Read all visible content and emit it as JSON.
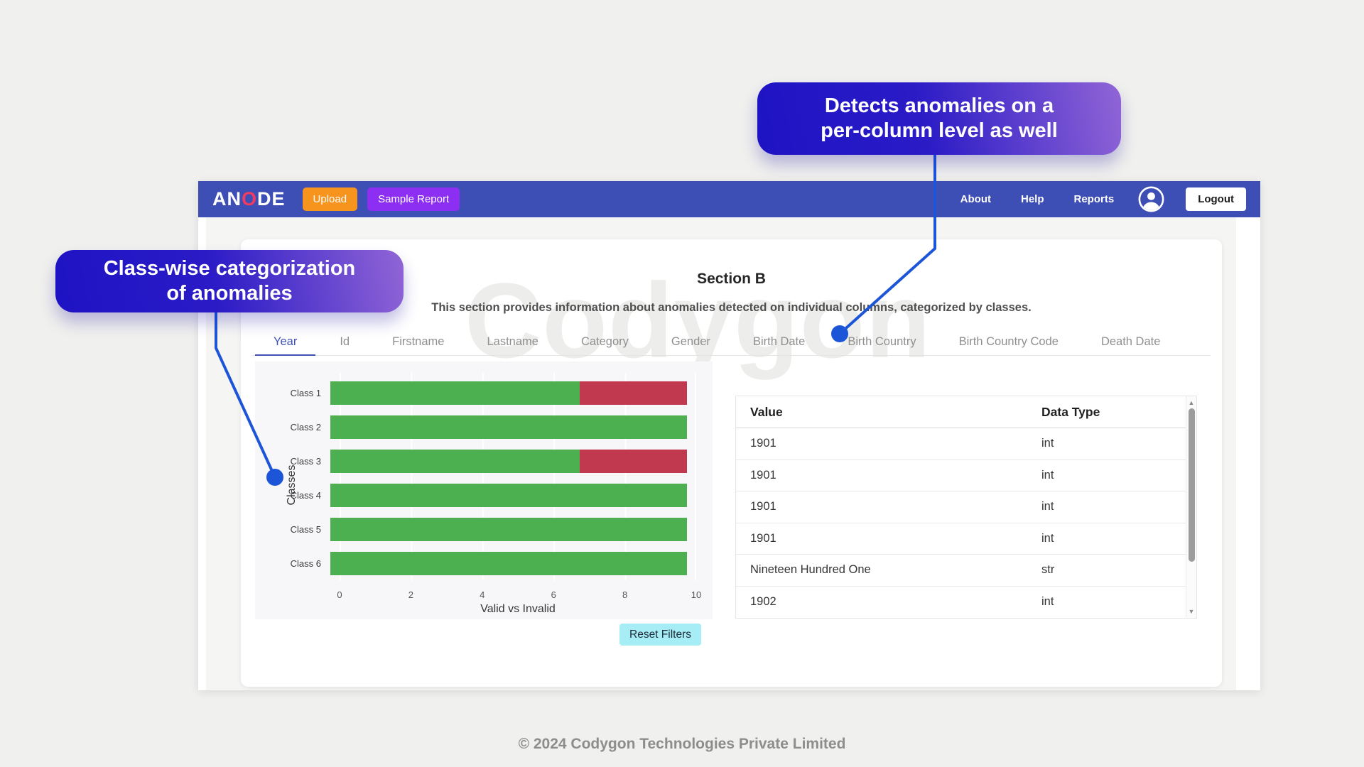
{
  "annotations": {
    "top_callout": {
      "line1": "Detects anomalies on a",
      "line2": "per-column level as well"
    },
    "left_callout": {
      "line1": "Class-wise categorization",
      "line2": "of anomalies"
    }
  },
  "navbar": {
    "brand": {
      "pre": "AN",
      "o": "O",
      "post": "DE"
    },
    "upload_label": "Upload",
    "sample_report_label": "Sample Report",
    "links": [
      "About",
      "Help",
      "Reports"
    ],
    "logout_label": "Logout"
  },
  "section": {
    "title": "Section B",
    "description": "This section provides information about anomalies detected on individual columns, categorized by classes."
  },
  "tabs": {
    "active": "Year",
    "items": [
      "Year",
      "Id",
      "Firstname",
      "Lastname",
      "Category",
      "Gender",
      "Birth Date",
      "Birth Country",
      "Birth Country Code",
      "Death Date"
    ]
  },
  "chart_data": {
    "type": "bar",
    "orientation": "horizontal",
    "stacked": true,
    "categories": [
      "Class 1",
      "Class 2",
      "Class 3",
      "Class 4",
      "Class 5",
      "Class 6"
    ],
    "series": [
      {
        "name": "Valid",
        "color": "#4caf50",
        "values": [
          7,
          10,
          7,
          10,
          10,
          10
        ]
      },
      {
        "name": "Invalid",
        "color": "#c0394f",
        "values": [
          3,
          0,
          3,
          0,
          0,
          0
        ]
      }
    ],
    "xlabel": "Valid vs Invalid",
    "ylabel": "Classes",
    "xlim": [
      0,
      10
    ],
    "xticks": [
      0,
      2,
      4,
      6,
      8,
      10
    ],
    "grid": true,
    "legend": false
  },
  "controls": {
    "reset_filters_label": "Reset Filters"
  },
  "table": {
    "columns": [
      "Value",
      "Data Type"
    ],
    "rows": [
      [
        "1901",
        "int"
      ],
      [
        "1901",
        "int"
      ],
      [
        "1901",
        "int"
      ],
      [
        "1901",
        "int"
      ],
      [
        "Nineteen Hundred One",
        "str"
      ],
      [
        "1902",
        "int"
      ]
    ]
  },
  "watermark": "Codygon",
  "footer": {
    "copyright": "© 2024 Codygon Technologies Private Limited"
  },
  "colors": {
    "navbar": "#3d4eb5",
    "upload_button": "#f7941e",
    "sample_report_button": "#8c2ff2",
    "brand_o": "#f23b5f",
    "valid_bar": "#4caf50",
    "invalid_bar": "#c0394f",
    "reset_button": "#a6edf6",
    "callout_gradient_from": "#1e13c4",
    "callout_gradient_to": "#9165d6",
    "connector": "#1d55d8",
    "active_tab": "#3f51b5"
  }
}
